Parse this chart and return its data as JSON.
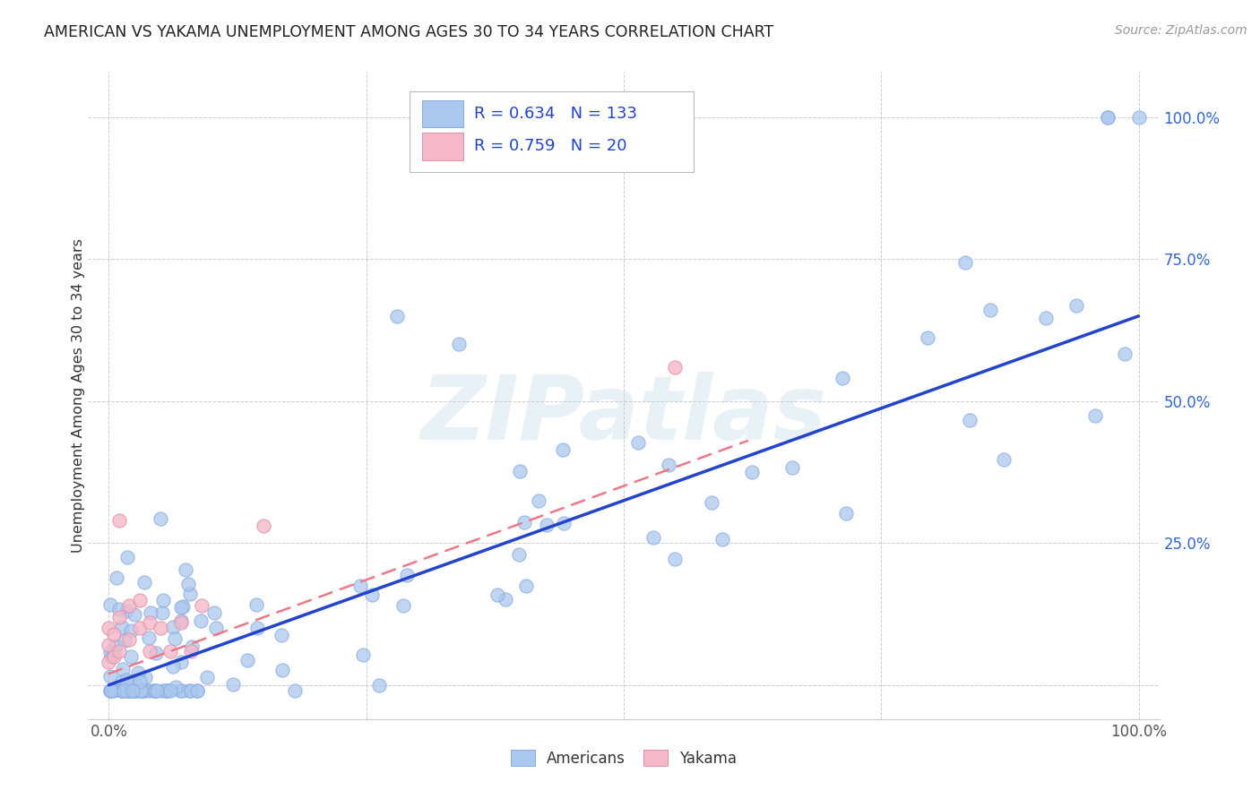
{
  "title": "AMERICAN VS YAKAMA UNEMPLOYMENT AMONG AGES 30 TO 34 YEARS CORRELATION CHART",
  "source": "Source: ZipAtlas.com",
  "ylabel": "Unemployment Among Ages 30 to 34 years",
  "background_color": "#ffffff",
  "watermark_text": "ZIPatlas",
  "legend_R_american": "0.634",
  "legend_N_american": "133",
  "legend_R_yakama": "0.759",
  "legend_N_yakama": "20",
  "american_color": "#aac8ee",
  "american_edge_color": "#88aadd",
  "yakama_color": "#f5b8c8",
  "yakama_edge_color": "#e090a8",
  "american_line_color": "#2244cc",
  "yakama_line_color": "#ee7788",
  "xlim": [
    -0.02,
    1.02
  ],
  "ylim": [
    -0.06,
    1.08
  ],
  "ytick_vals": [
    0.0,
    0.25,
    0.5,
    0.75,
    1.0
  ],
  "ytick_labels": [
    "",
    "25.0%",
    "50.0%",
    "75.0%",
    "100.0%"
  ],
  "xtick_vals": [
    0.0,
    0.25,
    0.5,
    0.75,
    1.0
  ],
  "xtick_show": [
    true,
    false,
    false,
    false,
    true
  ],
  "am_line_x": [
    0.0,
    1.0
  ],
  "am_line_y": [
    0.0,
    0.65
  ],
  "yk_line_x": [
    0.0,
    0.62
  ],
  "yk_line_y": [
    0.02,
    0.43
  ]
}
